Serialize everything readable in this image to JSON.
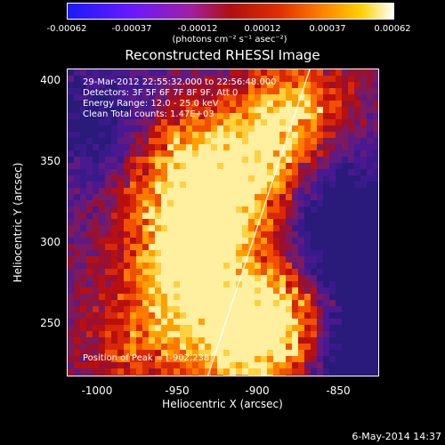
{
  "colorbar": {
    "ticks": [
      "-0.00062",
      "-0.00037",
      "-0.00012",
      "0.00012",
      "0.00037",
      "0.00062"
    ],
    "unit_label": "(photons cm⁻² s⁻¹ asec⁻²)"
  },
  "title": "Reconstructed RHESSI Image",
  "info": {
    "time_range": "29-Mar-2012 22:55:32.000 to 22:56:48.000",
    "detectors": "Detectors: 3F 5F 6F 7F 8F 9F, Att 0",
    "energy": "Energy Range: 12.0 - 25.0 keV",
    "clean": "Clean    Total counts: 1.47E+03",
    "peak": "Position of Peak = [-902,238]"
  },
  "axes": {
    "xlabel": "Heliocentric X (arcsec)",
    "ylabel": "Heliocentric Y (arcsec)",
    "xticks": [
      "-1000",
      "-950",
      "-900",
      "-850"
    ],
    "yticks": [
      "400",
      "350",
      "300",
      "250"
    ]
  },
  "footer_date": "6-May-2014 14:37"
}
